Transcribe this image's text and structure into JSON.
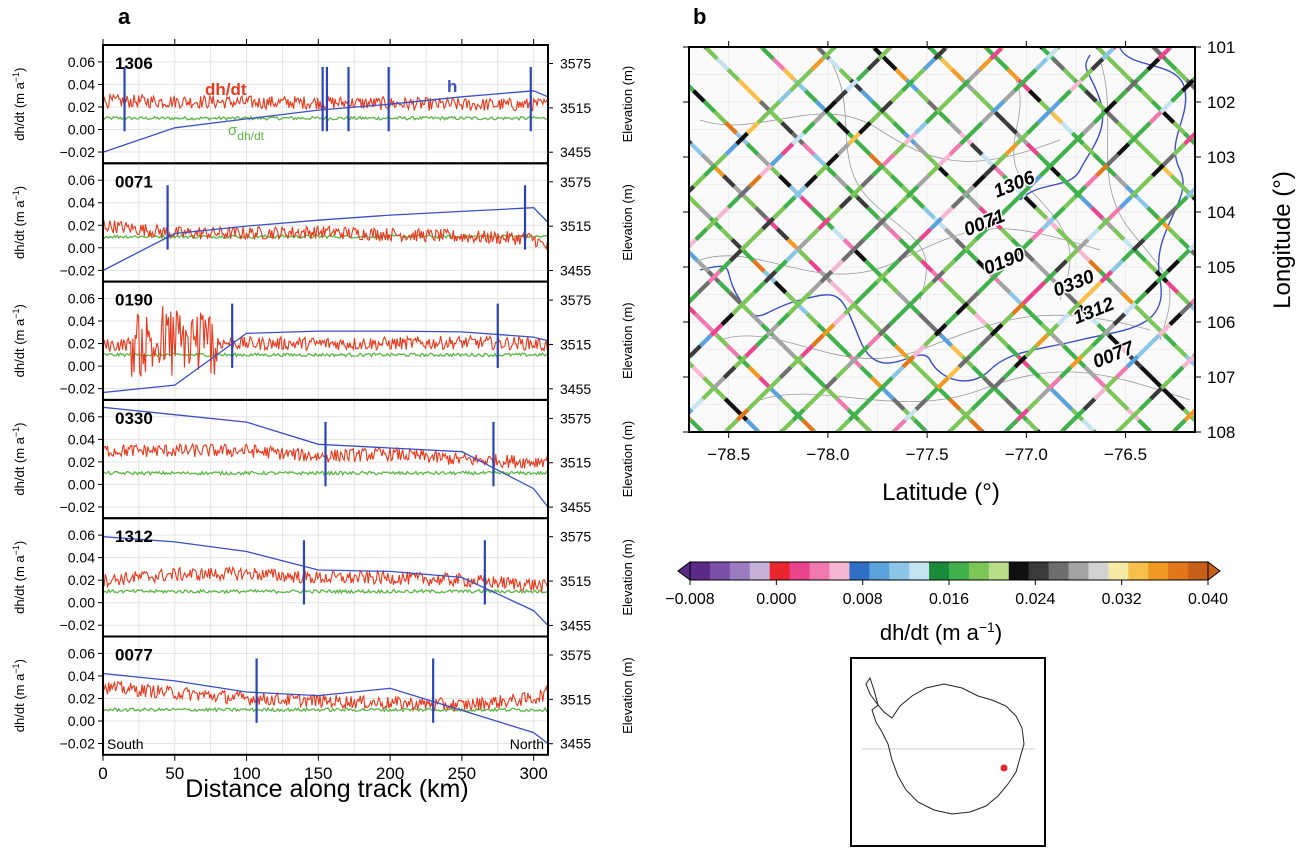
{
  "panel_a": {
    "label": "a",
    "left_axis_label": "dh/dt (m a",
    "left_axis_sup": "−1",
    "right_axis_label": "Elevation (m)",
    "x_label": "Distance along track (km)",
    "x_ticks": [
      "0",
      "50",
      "100",
      "150",
      "200",
      "250",
      "300"
    ],
    "y_ticks": [
      "0.06",
      "0.04",
      "0.02",
      "0.00",
      "−0.02"
    ],
    "y2_ticks": [
      "3575",
      "3515",
      "3455"
    ],
    "legend": {
      "dhdt": "dh/dt",
      "h": "h",
      "sigma_main": "σ",
      "sigma_sub": "dh/dt"
    },
    "south_label": "South",
    "north_label": "North"
  },
  "panel_b": {
    "label": "b",
    "x_label": "Latitude (°)",
    "y_label": "Longitude (°)",
    "x_ticks": [
      "−78.5",
      "−78.0",
      "−77.5",
      "−77.0",
      "−76.5"
    ],
    "y_ticks": [
      "101",
      "102",
      "103",
      "104",
      "105",
      "106",
      "107",
      "108"
    ],
    "track_labels": [
      "1306",
      "0071",
      "0190",
      "0330",
      "1312",
      "0077"
    ]
  },
  "colorbar": {
    "label_main": "dh/dt (m a",
    "label_sup": "−1",
    "label_end": ")",
    "ticks": [
      "−0.008",
      "0.000",
      "0.008",
      "0.016",
      "0.024",
      "0.032",
      "0.040"
    ],
    "colors": [
      "#5b2a86",
      "#7a4fa8",
      "#9b7cc0",
      "#c6b2d8",
      "#e8262d",
      "#e9448c",
      "#f07ab0",
      "#f6b7d2",
      "#2f6fc6",
      "#5aa2dc",
      "#8cc6e7",
      "#c3e3f1",
      "#1b8a3b",
      "#3fb04a",
      "#7cc657",
      "#b8de8a",
      "#101010",
      "#3a3a3a",
      "#6e6e6e",
      "#a3a3a3",
      "#d2d2d2",
      "#f5eaa6",
      "#f6c04a",
      "#f09a23",
      "#e2761b",
      "#c8601a"
    ]
  },
  "chart_data": [
    {
      "type": "line",
      "panel": "a",
      "xlim": [
        0,
        310
      ],
      "ylim": [
        -0.03,
        0.075
      ],
      "y2lim": [
        3440,
        3600
      ],
      "x_unit": "km",
      "tracks": [
        {
          "id": "1306",
          "dhdt_x": [
            0,
            50,
            100,
            150,
            200,
            250,
            300,
            310
          ],
          "dhdt_y": [
            0.025,
            0.025,
            0.024,
            0.024,
            0.023,
            0.022,
            0.022,
            0.022
          ],
          "sigma_y": 0.01,
          "h_x": [
            0,
            50,
            100,
            150,
            200,
            250,
            300,
            310
          ],
          "h_y": [
            3455,
            3488,
            3500,
            3512,
            3520,
            3530,
            3538,
            3530
          ],
          "markers_km": [
            15,
            153,
            156,
            171,
            199,
            298
          ]
        },
        {
          "id": "0071",
          "dhdt_x": [
            0,
            50,
            100,
            150,
            200,
            250,
            300,
            310
          ],
          "dhdt_y": [
            0.02,
            0.013,
            0.013,
            0.014,
            0.012,
            0.01,
            0.008,
            0.0
          ],
          "sigma_y": 0.01,
          "h_x": [
            0,
            50,
            100,
            150,
            200,
            250,
            300,
            310
          ],
          "h_y": [
            3455,
            3505,
            3515,
            3523,
            3530,
            3535,
            3540,
            3520
          ],
          "markers_km": [
            45,
            294
          ]
        },
        {
          "id": "0190",
          "dhdt_x": [
            0,
            50,
            100,
            150,
            200,
            250,
            300,
            310
          ],
          "dhdt_y": [
            0.018,
            0.022,
            0.02,
            0.02,
            0.02,
            0.021,
            0.02,
            0.018
          ],
          "sigma_y": 0.01,
          "h_x": [
            0,
            50,
            100,
            150,
            200,
            250,
            300,
            310
          ],
          "h_y": [
            3450,
            3460,
            3530,
            3533,
            3533,
            3532,
            3525,
            3520
          ],
          "markers_km": [
            90,
            275
          ]
        },
        {
          "id": "0330",
          "dhdt_x": [
            0,
            50,
            100,
            150,
            200,
            250,
            300,
            310
          ],
          "dhdt_y": [
            0.03,
            0.03,
            0.03,
            0.025,
            0.027,
            0.022,
            0.02,
            0.022
          ],
          "sigma_y": 0.01,
          "h_x": [
            0,
            50,
            100,
            150,
            200,
            250,
            300,
            310
          ],
          "h_y": [
            3590,
            3580,
            3570,
            3540,
            3535,
            3530,
            3480,
            3455
          ],
          "markers_km": [
            155,
            272
          ]
        },
        {
          "id": "1312",
          "dhdt_x": [
            0,
            50,
            100,
            150,
            200,
            250,
            300,
            310
          ],
          "dhdt_y": [
            0.02,
            0.025,
            0.026,
            0.022,
            0.022,
            0.02,
            0.016,
            0.014
          ],
          "sigma_y": 0.01,
          "h_x": [
            0,
            50,
            100,
            150,
            200,
            250,
            300,
            310
          ],
          "h_y": [
            3575,
            3568,
            3555,
            3530,
            3528,
            3520,
            3475,
            3455
          ],
          "markers_km": [
            140,
            266
          ]
        },
        {
          "id": "0077",
          "dhdt_x": [
            0,
            50,
            100,
            150,
            200,
            250,
            300,
            310
          ],
          "dhdt_y": [
            0.03,
            0.025,
            0.02,
            0.018,
            0.016,
            0.014,
            0.02,
            0.025
          ],
          "sigma_y": 0.01,
          "h_x": [
            0,
            50,
            100,
            150,
            200,
            250,
            300,
            310
          ],
          "h_y": [
            3550,
            3540,
            3525,
            3520,
            3530,
            3500,
            3470,
            3455
          ],
          "markers_km": [
            107,
            230
          ]
        }
      ],
      "series_colors": {
        "dhdt": "#e8381b",
        "sigma": "#5bb745",
        "h": "#3b4fc4",
        "markers": "#2b44b8"
      }
    },
    {
      "type": "scatter",
      "panel": "b",
      "xlim": [
        -78.7,
        -76.15
      ],
      "ylim": [
        101,
        108
      ],
      "tracks": [
        {
          "id": "1306",
          "label_at": [
            -77.05,
            103.6
          ]
        },
        {
          "id": "0071",
          "label_at": [
            -77.2,
            104.3
          ]
        },
        {
          "id": "0190",
          "label_at": [
            -77.1,
            105.0
          ]
        },
        {
          "id": "0330",
          "label_at": [
            -76.75,
            105.4
          ]
        },
        {
          "id": "1312",
          "label_at": [
            -76.65,
            105.9
          ]
        },
        {
          "id": "0077",
          "label_at": [
            -76.55,
            106.7
          ]
        }
      ]
    }
  ],
  "inset": {
    "marker_color": "#e8262d"
  }
}
